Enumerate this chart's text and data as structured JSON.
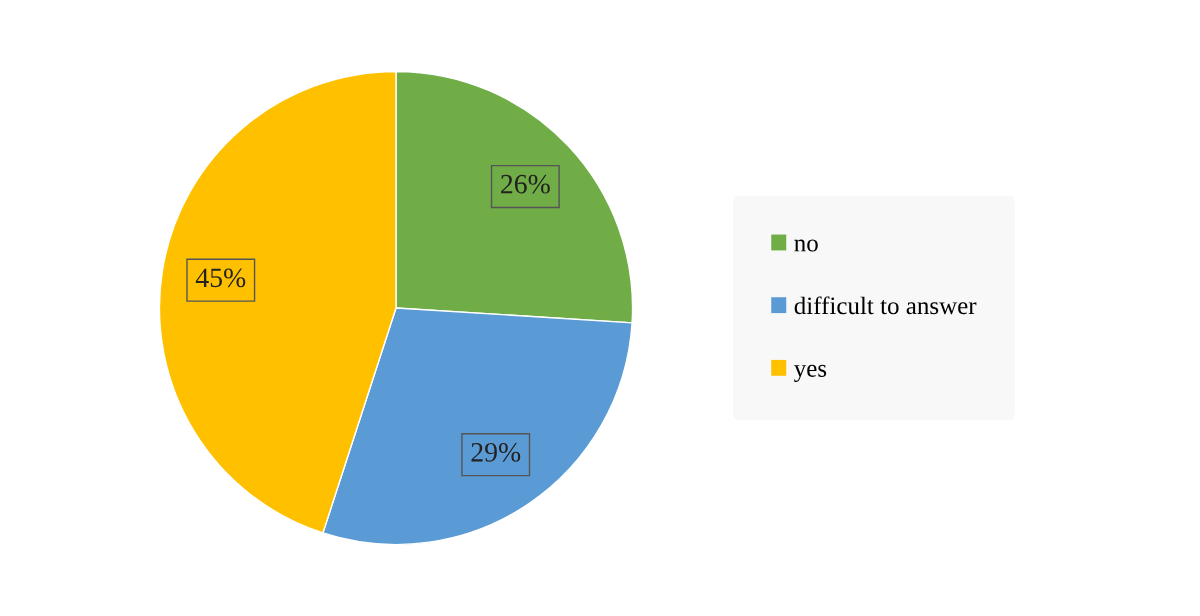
{
  "chart_data": {
    "type": "pie",
    "categories": [
      "no",
      "difficult to answer",
      "yes"
    ],
    "values": [
      26,
      29,
      45
    ],
    "value_labels": [
      "26%",
      "29%",
      "45%"
    ],
    "colors": [
      "#70ad47",
      "#5b9bd5",
      "#ffc000"
    ],
    "legend": "right"
  }
}
